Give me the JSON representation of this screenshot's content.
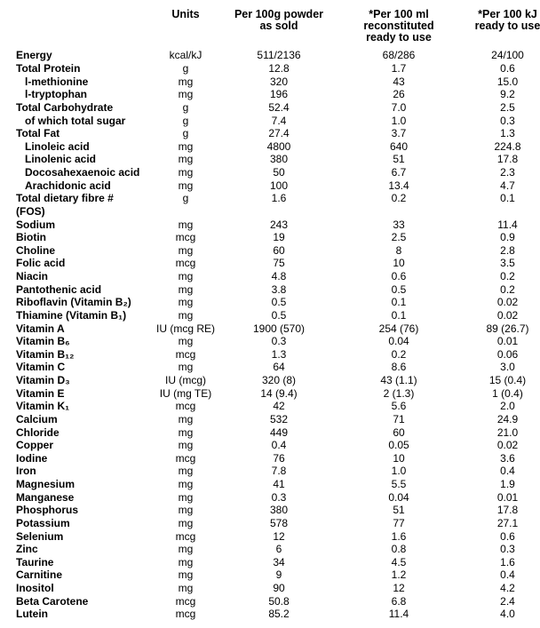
{
  "table": {
    "text_color": "#000000",
    "background_color": "#ffffff",
    "font_family": "Arial",
    "header_fontsize": 12.5,
    "body_fontsize": 12,
    "columns": [
      {
        "key": "name",
        "label": ""
      },
      {
        "key": "units",
        "label": "Units"
      },
      {
        "key": "c1",
        "label": "Per 100g powder\nas sold"
      },
      {
        "key": "c2",
        "label": "*Per 100 ml reconstituted\nready to use"
      },
      {
        "key": "c3",
        "label": "*Per 100 kJ\nready to use"
      }
    ],
    "rows": [
      {
        "name": "Energy",
        "units": "kcal/kJ",
        "c1": "511/2136",
        "c2": "68/286",
        "c3": "24/100",
        "indent": 0
      },
      {
        "name": "Total Protein",
        "units": "g",
        "c1": "12.8",
        "c2": "1.7",
        "c3": "0.6",
        "indent": 0
      },
      {
        "name": "l-methionine",
        "units": "mg",
        "c1": "320",
        "c2": "43",
        "c3": "15.0",
        "indent": 1
      },
      {
        "name": "l-tryptophan",
        "units": "mg",
        "c1": "196",
        "c2": "26",
        "c3": "9.2",
        "indent": 1
      },
      {
        "name": "Total Carbohydrate",
        "units": "g",
        "c1": "52.4",
        "c2": "7.0",
        "c3": "2.5",
        "indent": 0
      },
      {
        "name": "of which total sugar",
        "units": "g",
        "c1": "7.4",
        "c2": "1.0",
        "c3": "0.3",
        "indent": 1
      },
      {
        "name": "Total Fat",
        "units": "g",
        "c1": "27.4",
        "c2": "3.7",
        "c3": "1.3",
        "indent": 0
      },
      {
        "name": "Linoleic acid",
        "units": "mg",
        "c1": "4800",
        "c2": "640",
        "c3": "224.8",
        "indent": 1
      },
      {
        "name": "Linolenic acid",
        "units": "mg",
        "c1": "380",
        "c2": "51",
        "c3": "17.8",
        "indent": 1
      },
      {
        "name": "Docosahexaenoic acid",
        "units": "mg",
        "c1": "50",
        "c2": "6.7",
        "c3": "2.3",
        "indent": 1
      },
      {
        "name": "Arachidonic acid",
        "units": "mg",
        "c1": "100",
        "c2": "13.4",
        "c3": "4.7",
        "indent": 1
      },
      {
        "name": "Total dietary fibre # (FOS)",
        "units": "g",
        "c1": "1.6",
        "c2": "0.2",
        "c3": "0.1",
        "indent": 0
      },
      {
        "name": "Sodium",
        "units": "mg",
        "c1": "243",
        "c2": "33",
        "c3": "11.4",
        "indent": 0
      },
      {
        "name": "Biotin",
        "units": "mcg",
        "c1": "19",
        "c2": "2.5",
        "c3": "0.9",
        "indent": 0
      },
      {
        "name": "Choline",
        "units": "mg",
        "c1": "60",
        "c2": "8",
        "c3": "2.8",
        "indent": 0
      },
      {
        "name": "Folic acid",
        "units": "mcg",
        "c1": "75",
        "c2": "10",
        "c3": "3.5",
        "indent": 0
      },
      {
        "name": "Niacin",
        "units": "mg",
        "c1": "4.8",
        "c2": "0.6",
        "c3": "0.2",
        "indent": 0
      },
      {
        "name": "Pantothenic acid",
        "units": "mg",
        "c1": "3.8",
        "c2": "0.5",
        "c3": "0.2",
        "indent": 0
      },
      {
        "name": "Riboflavin (Vitamin B₂)",
        "units": "mg",
        "c1": "0.5",
        "c2": "0.1",
        "c3": "0.02",
        "indent": 0
      },
      {
        "name": "Thiamine (Vitamin B₁)",
        "units": "mg",
        "c1": "0.5",
        "c2": "0.1",
        "c3": "0.02",
        "indent": 0
      },
      {
        "name": "Vitamin A",
        "units": "IU (mcg RE)",
        "c1": "1900 (570)",
        "c2": "254 (76)",
        "c3": "89 (26.7)",
        "indent": 0
      },
      {
        "name": "Vitamin B₆",
        "units": "mg",
        "c1": "0.3",
        "c2": "0.04",
        "c3": "0.01",
        "indent": 0
      },
      {
        "name": "Vitamin B₁₂",
        "units": "mcg",
        "c1": "1.3",
        "c2": "0.2",
        "c3": "0.06",
        "indent": 0
      },
      {
        "name": "Vitamin C",
        "units": "mg",
        "c1": "64",
        "c2": "8.6",
        "c3": "3.0",
        "indent": 0
      },
      {
        "name": "Vitamin D₃",
        "units": "IU (mcg)",
        "c1": "320 (8)",
        "c2": "43 (1.1)",
        "c3": "15 (0.4)",
        "indent": 0
      },
      {
        "name": "Vitamin E",
        "units": "IU (mg TE)",
        "c1": "14 (9.4)",
        "c2": "2 (1.3)",
        "c3": "1 (0.4)",
        "indent": 0
      },
      {
        "name": "Vitamin K₁",
        "units": "mcg",
        "c1": "42",
        "c2": "5.6",
        "c3": "2.0",
        "indent": 0
      },
      {
        "name": "Calcium",
        "units": "mg",
        "c1": "532",
        "c2": "71",
        "c3": "24.9",
        "indent": 0
      },
      {
        "name": "Chloride",
        "units": "mg",
        "c1": "449",
        "c2": "60",
        "c3": "21.0",
        "indent": 0
      },
      {
        "name": "Copper",
        "units": "mg",
        "c1": "0.4",
        "c2": "0.05",
        "c3": "0.02",
        "indent": 0
      },
      {
        "name": "Iodine",
        "units": "mcg",
        "c1": "76",
        "c2": "10",
        "c3": "3.6",
        "indent": 0
      },
      {
        "name": "Iron",
        "units": "mg",
        "c1": "7.8",
        "c2": "1.0",
        "c3": "0.4",
        "indent": 0
      },
      {
        "name": "Magnesium",
        "units": "mg",
        "c1": "41",
        "c2": "5.5",
        "c3": "1.9",
        "indent": 0
      },
      {
        "name": "Manganese",
        "units": "mg",
        "c1": "0.3",
        "c2": "0.04",
        "c3": "0.01",
        "indent": 0
      },
      {
        "name": "Phosphorus",
        "units": "mg",
        "c1": "380",
        "c2": "51",
        "c3": "17.8",
        "indent": 0
      },
      {
        "name": "Potassium",
        "units": "mg",
        "c1": "578",
        "c2": "77",
        "c3": "27.1",
        "indent": 0
      },
      {
        "name": "Selenium",
        "units": "mcg",
        "c1": "12",
        "c2": "1.6",
        "c3": "0.6",
        "indent": 0
      },
      {
        "name": "Zinc",
        "units": "mg",
        "c1": "6",
        "c2": "0.8",
        "c3": "0.3",
        "indent": 0
      },
      {
        "name": "Taurine",
        "units": "mg",
        "c1": "34",
        "c2": "4.5",
        "c3": "1.6",
        "indent": 0
      },
      {
        "name": "Carnitine",
        "units": "mg",
        "c1": "9",
        "c2": "1.2",
        "c3": "0.4",
        "indent": 0
      },
      {
        "name": "Inositol",
        "units": "mg",
        "c1": "90",
        "c2": "12",
        "c3": "4.2",
        "indent": 0
      },
      {
        "name": "Beta Carotene",
        "units": "mcg",
        "c1": "50.8",
        "c2": "6.8",
        "c3": "2.4",
        "indent": 0
      },
      {
        "name": "Lutein",
        "units": "mcg",
        "c1": "85.2",
        "c2": "11.4",
        "c3": "4.0",
        "indent": 0
      }
    ]
  }
}
